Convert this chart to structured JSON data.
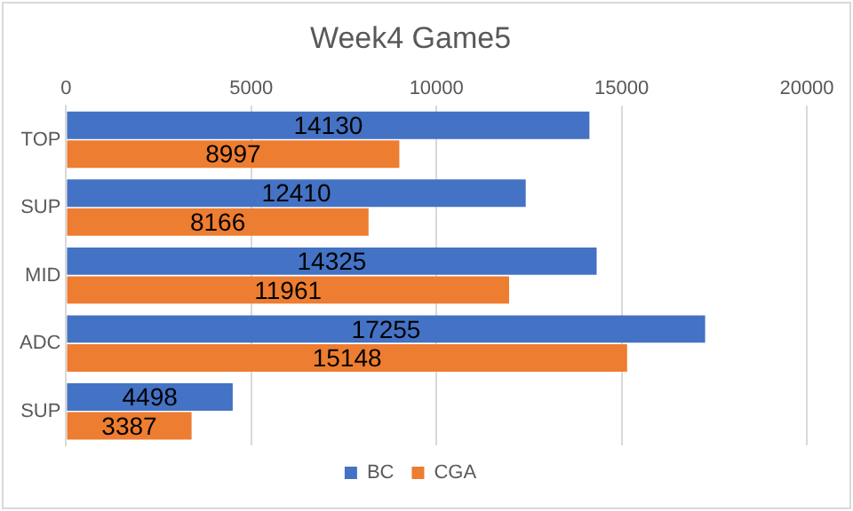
{
  "chart_data": {
    "type": "bar",
    "orientation": "horizontal",
    "title": "Week4 Game5",
    "categories": [
      "TOP",
      "SUP",
      "MID",
      "ADC",
      "SUP"
    ],
    "series": [
      {
        "name": "BC",
        "color": "#4472c4",
        "values": [
          14130,
          12410,
          14325,
          17255,
          4498
        ]
      },
      {
        "name": "CGA",
        "color": "#ed7d31",
        "values": [
          8997,
          8166,
          11961,
          15148,
          3387
        ]
      }
    ],
    "xlim": [
      0,
      20000
    ],
    "xticks": [
      0,
      5000,
      10000,
      15000,
      20000
    ],
    "grid": "x",
    "legend": "bottom",
    "data_labels": true
  }
}
